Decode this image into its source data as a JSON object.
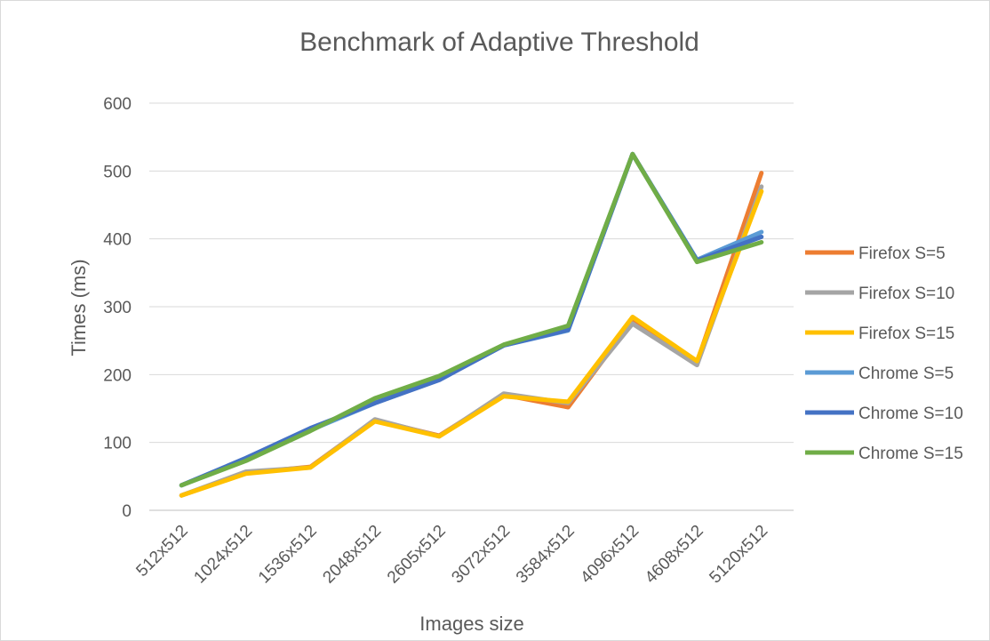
{
  "chart_data": {
    "type": "line",
    "title": "Benchmark of Adaptive Threshold",
    "xlabel": "Images size",
    "ylabel": "Times (ms)",
    "ylim": [
      0,
      600
    ],
    "yticks": [
      0,
      100,
      200,
      300,
      400,
      500,
      600
    ],
    "grid": true,
    "legend_position": "right",
    "categories": [
      "512x512",
      "1024x512",
      "1536x512",
      "2048x512",
      "2605x512",
      "3072x512",
      "3584x512",
      "4096x512",
      "4608x512",
      "5120x512"
    ],
    "series": [
      {
        "name": "Firefox S=5",
        "color": "#ed7d31",
        "values": [
          22,
          55,
          64,
          133,
          110,
          170,
          152,
          280,
          218,
          497
        ]
      },
      {
        "name": "Firefox S=10",
        "color": "#a5a5a5",
        "values": [
          22,
          57,
          63,
          134,
          109,
          172,
          158,
          275,
          214,
          477
        ]
      },
      {
        "name": "Firefox S=15",
        "color": "#ffc000",
        "values": [
          22,
          54,
          63,
          131,
          109,
          168,
          160,
          285,
          220,
          470
        ]
      },
      {
        "name": "Chrome S=5",
        "color": "#5b9bd5",
        "values": [
          37,
          76,
          118,
          158,
          193,
          243,
          265,
          525,
          369,
          410
        ]
      },
      {
        "name": "Chrome S=10",
        "color": "#4472c4",
        "values": [
          37,
          77,
          121,
          158,
          192,
          243,
          266,
          525,
          368,
          403
        ]
      },
      {
        "name": "Chrome S=15",
        "color": "#70ad47",
        "values": [
          37,
          73,
          117,
          165,
          198,
          244,
          272,
          525,
          366,
          395
        ]
      }
    ]
  }
}
